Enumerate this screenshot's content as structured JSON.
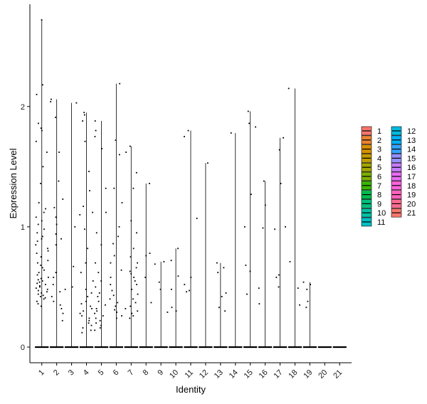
{
  "chart_data": {
    "type": "violin",
    "xlabel": "Identity",
    "ylabel": "Expression Level",
    "categories": [
      "1",
      "2",
      "3",
      "4",
      "5",
      "6",
      "7",
      "8",
      "9",
      "10",
      "11",
      "12",
      "13",
      "14",
      "15",
      "16",
      "17",
      "18",
      "19",
      "20",
      "21"
    ],
    "ylim": [
      -0.13,
      2.85
    ],
    "yticks": [
      0,
      1,
      2
    ],
    "grid": false,
    "legend_position": "right",
    "series": [
      {
        "name": "1",
        "color": "#F8766D",
        "max": 2.72,
        "points": [
          2.72,
          2.18,
          2.1,
          1.86,
          1.82,
          1.8,
          1.71,
          1.62,
          1.5,
          1.36,
          1.2,
          1.15,
          1.12,
          1.08,
          1.05,
          1.02,
          0.98,
          0.95,
          0.92,
          0.9,
          0.88,
          0.85,
          0.82,
          0.8,
          0.78,
          0.75,
          0.72,
          0.7,
          0.68,
          0.66,
          0.64,
          0.62,
          0.6,
          0.58,
          0.57,
          0.56,
          0.55,
          0.54,
          0.53,
          0.52,
          0.51,
          0.5,
          0.49,
          0.48,
          0.47,
          0.46,
          0.45,
          0.44,
          0.43,
          0.42,
          0.41,
          0.4,
          0.38,
          0.36,
          0.34
        ]
      },
      {
        "name": "2",
        "color": "#EA8331",
        "max": 2.06,
        "points": [
          2.06,
          2.04,
          1.91,
          1.62,
          1.38,
          1.23,
          1.16,
          1.08,
          1.02,
          0.94,
          0.9,
          0.85,
          0.62,
          0.58,
          0.52,
          0.46,
          0.42,
          0.38,
          0.35,
          0.32,
          0.28,
          0.22
        ]
      },
      {
        "name": "3",
        "color": "#D89000",
        "max": 2.03,
        "points": [
          2.03,
          1.0,
          0.67,
          0.5,
          0.48
        ]
      },
      {
        "name": "4",
        "color": "#C09B00",
        "max": 1.95,
        "points": [
          1.95,
          1.93,
          1.88,
          1.71,
          1.46,
          1.3,
          1.17,
          1.12,
          1.1,
          0.98,
          0.82,
          0.7,
          0.62,
          0.55,
          0.48,
          0.45,
          0.42,
          0.38,
          0.36,
          0.34,
          0.32,
          0.3,
          0.28,
          0.26,
          0.24,
          0.22,
          0.2,
          0.18,
          0.16,
          0.14,
          0.12
        ]
      },
      {
        "name": "5",
        "color": "#A3A500",
        "max": 1.88,
        "points": [
          1.88,
          1.8,
          1.75,
          1.65,
          1.32,
          1.12,
          0.95,
          0.85,
          0.7,
          0.62,
          0.55,
          0.5,
          0.45,
          0.42,
          0.38,
          0.35,
          0.32,
          0.3,
          0.28,
          0.26,
          0.24,
          0.22,
          0.2,
          0.18,
          0.16,
          0.14
        ]
      },
      {
        "name": "6",
        "color": "#7CAE00",
        "max": 2.19,
        "points": [
          2.19,
          1.72,
          1.6,
          1.32,
          1.2,
          1.0,
          0.92,
          0.86,
          0.76,
          0.7,
          0.64,
          0.58,
          0.52,
          0.47,
          0.43,
          0.4,
          0.37,
          0.34,
          0.31,
          0.29,
          0.26,
          0.24
        ]
      },
      {
        "name": "7",
        "color": "#39B600",
        "max": 1.67,
        "points": [
          1.67,
          1.62,
          1.45,
          1.32,
          1.05,
          0.95,
          0.82,
          0.75,
          0.7,
          0.66,
          0.63,
          0.61,
          0.58,
          0.55,
          0.52,
          0.48,
          0.44,
          0.4,
          0.37,
          0.34,
          0.32,
          0.3,
          0.28,
          0.26,
          0.24
        ]
      },
      {
        "name": "8",
        "color": "#00BB4E",
        "max": 1.36,
        "points": [
          1.36,
          0.78,
          0.76,
          0.58,
          0.37
        ]
      },
      {
        "name": "9",
        "color": "#00BF7D",
        "max": 0.71,
        "points": [
          0.71,
          0.69,
          0.54,
          0.48,
          0.29
        ]
      },
      {
        "name": "10",
        "color": "#00C1A3",
        "max": 0.82,
        "points": [
          0.82,
          0.72,
          0.59,
          0.48,
          0.33,
          0.3
        ]
      },
      {
        "name": "11",
        "color": "#00BFC4",
        "max": 1.8,
        "points": [
          1.8,
          1.75,
          1.07,
          0.58,
          0.52,
          0.47,
          0.46
        ]
      },
      {
        "name": "12",
        "color": "#00BAE0",
        "max": 1.53,
        "points": [
          1.53
        ]
      },
      {
        "name": "13",
        "color": "#00B0F6",
        "max": 0.7,
        "points": [
          0.7,
          0.66,
          0.62,
          0.45,
          0.42,
          0.33,
          0.3
        ]
      },
      {
        "name": "14",
        "color": "#35A2FF",
        "max": 1.78,
        "points": [
          1.78
        ]
      },
      {
        "name": "15",
        "color": "#9590FF",
        "max": 1.96,
        "points": [
          1.96,
          1.86,
          1.83,
          1.27,
          1.0,
          0.68,
          0.63,
          0.44
        ]
      },
      {
        "name": "16",
        "color": "#C77CFF",
        "max": 1.38,
        "points": [
          1.38,
          1.18,
          0.99,
          0.49,
          0.36
        ]
      },
      {
        "name": "17",
        "color": "#E76BF3",
        "max": 1.74,
        "points": [
          1.74,
          1.64,
          1.36,
          1.0,
          0.98,
          0.6,
          0.58,
          0.5
        ]
      },
      {
        "name": "18",
        "color": "#FA62DB",
        "max": 2.15,
        "points": [
          2.15,
          0.71,
          0.49,
          0.35
        ]
      },
      {
        "name": "19",
        "color": "#FF62BC",
        "max": 0.54,
        "points": [
          0.54,
          0.52,
          0.48,
          0.38,
          0.33
        ]
      },
      {
        "name": "20",
        "color": "#FF6C91",
        "max": 0.0,
        "points": []
      },
      {
        "name": "21",
        "color": "#F8766D",
        "max": 0.0,
        "points": []
      }
    ]
  }
}
